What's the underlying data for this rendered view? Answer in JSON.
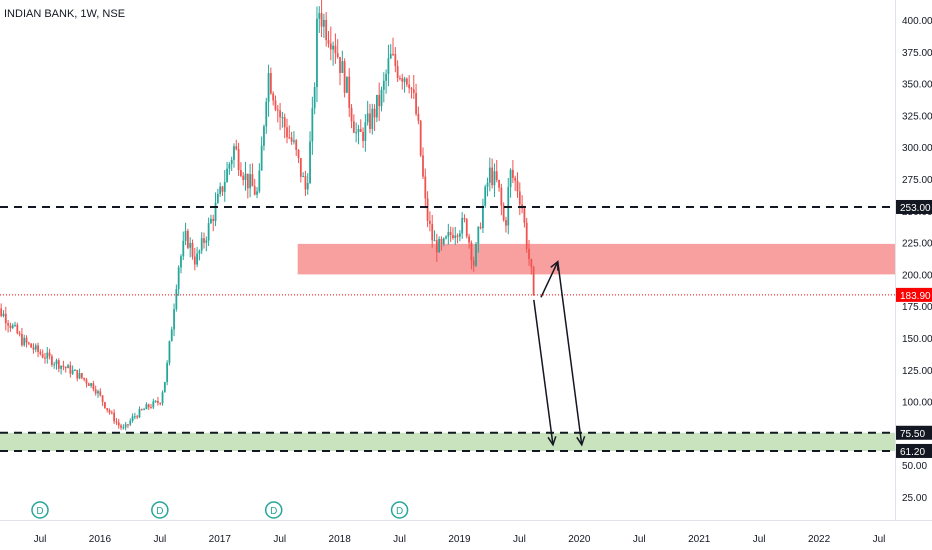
{
  "chart_data": {
    "type": "candlestick",
    "title": "INDIAN BANK, 1W, NSE",
    "y_ticks": [
      25,
      50,
      75,
      100,
      125,
      150,
      175,
      200,
      225,
      250,
      275,
      300,
      325,
      350,
      375,
      400
    ],
    "y_tick_labels": [
      "25.00",
      "50.00",
      "75.00",
      "100.00",
      "125.00",
      "150.00",
      "175.00",
      "200.00",
      "225.00",
      "250.00",
      "275.00",
      "300.00",
      "325.00",
      "350.00",
      "375.00",
      "400.00"
    ],
    "x_ticks": [
      {
        "label": "Jul",
        "t": 2015.5
      },
      {
        "label": "2016",
        "t": 2016.0
      },
      {
        "label": "Jul",
        "t": 2016.5
      },
      {
        "label": "2017",
        "t": 2017.0
      },
      {
        "label": "Jul",
        "t": 2017.5
      },
      {
        "label": "2018",
        "t": 2018.0
      },
      {
        "label": "Jul",
        "t": 2018.5
      },
      {
        "label": "2019",
        "t": 2019.0
      },
      {
        "label": "Jul",
        "t": 2019.5
      },
      {
        "label": "2020",
        "t": 2020.0
      },
      {
        "label": "Jul",
        "t": 2020.5
      },
      {
        "label": "2021",
        "t": 2021.0
      },
      {
        "label": "Jul",
        "t": 2021.5
      },
      {
        "label": "2022",
        "t": 2022.0
      },
      {
        "label": "Jul",
        "t": 2022.5
      }
    ],
    "price_path": [
      [
        2015.08,
        178
      ],
      [
        2015.2,
        168
      ],
      [
        2015.35,
        148
      ],
      [
        2015.5,
        138
      ],
      [
        2015.65,
        130
      ],
      [
        2015.8,
        122
      ],
      [
        2015.95,
        112
      ],
      [
        2016.05,
        96
      ],
      [
        2016.15,
        82
      ],
      [
        2016.2,
        78
      ],
      [
        2016.28,
        88
      ],
      [
        2016.4,
        96
      ],
      [
        2016.5,
        100
      ],
      [
        2016.55,
        120
      ],
      [
        2016.6,
        160
      ],
      [
        2016.65,
        205
      ],
      [
        2016.72,
        230
      ],
      [
        2016.8,
        210
      ],
      [
        2016.9,
        235
      ],
      [
        2017.0,
        262
      ],
      [
        2017.12,
        300
      ],
      [
        2017.22,
        275
      ],
      [
        2017.32,
        262
      ],
      [
        2017.4,
        360
      ],
      [
        2017.5,
        325
      ],
      [
        2017.62,
        300
      ],
      [
        2017.72,
        265
      ],
      [
        2017.78,
        330
      ],
      [
        2017.82,
        410
      ],
      [
        2017.88,
        395
      ],
      [
        2017.95,
        385
      ],
      [
        2018.05,
        350
      ],
      [
        2018.15,
        305
      ],
      [
        2018.25,
        320
      ],
      [
        2018.35,
        340
      ],
      [
        2018.42,
        370
      ],
      [
        2018.5,
        360
      ],
      [
        2018.58,
        355
      ],
      [
        2018.65,
        320
      ],
      [
        2018.72,
        250
      ],
      [
        2018.78,
        225
      ],
      [
        2018.85,
        220
      ],
      [
        2018.95,
        235
      ],
      [
        2019.05,
        240
      ],
      [
        2019.12,
        208
      ],
      [
        2019.18,
        245
      ],
      [
        2019.25,
        280
      ],
      [
        2019.32,
        270
      ],
      [
        2019.38,
        235
      ],
      [
        2019.42,
        280
      ],
      [
        2019.48,
        270
      ],
      [
        2019.52,
        255
      ],
      [
        2019.56,
        225
      ],
      [
        2019.6,
        200
      ],
      [
        2019.63,
        184
      ]
    ],
    "horizontal_lines": [
      {
        "value": 253.0,
        "label": "253.00",
        "style": "dashed"
      },
      {
        "value": 75.5,
        "label": "75.50",
        "style": "dashed"
      },
      {
        "value": 61.2,
        "label": "61.20",
        "style": "dashed"
      }
    ],
    "current_price": {
      "value": 183.9,
      "label": "183.90",
      "color": "#ff0000"
    },
    "zones": [
      {
        "name": "resistance-zone",
        "t0": 2017.65,
        "t1": 2023.0,
        "y0": 200,
        "y1": 224,
        "color": "#f8a0a0"
      },
      {
        "name": "support-zone",
        "t0": 2015.0,
        "t1": 2023.0,
        "y0": 61.2,
        "y1": 75.5,
        "color": "#c8e3bd"
      }
    ],
    "projection_arrows": [
      {
        "from": [
          2019.68,
          182
        ],
        "to": [
          2019.82,
          210
        ]
      },
      {
        "from": [
          2019.82,
          210
        ],
        "to": [
          2020.02,
          66
        ]
      },
      {
        "from": [
          2019.62,
          180
        ],
        "to": [
          2019.78,
          66
        ]
      }
    ],
    "dividend_markers": [
      {
        "label": "D",
        "t": 2015.5
      },
      {
        "label": "D",
        "t": 2016.5
      },
      {
        "label": "D",
        "t": 2017.45
      },
      {
        "label": "D",
        "t": 2018.5
      }
    ],
    "colors": {
      "up": "#26a69a",
      "down": "#ef5350",
      "marker": "#26a69a"
    }
  }
}
